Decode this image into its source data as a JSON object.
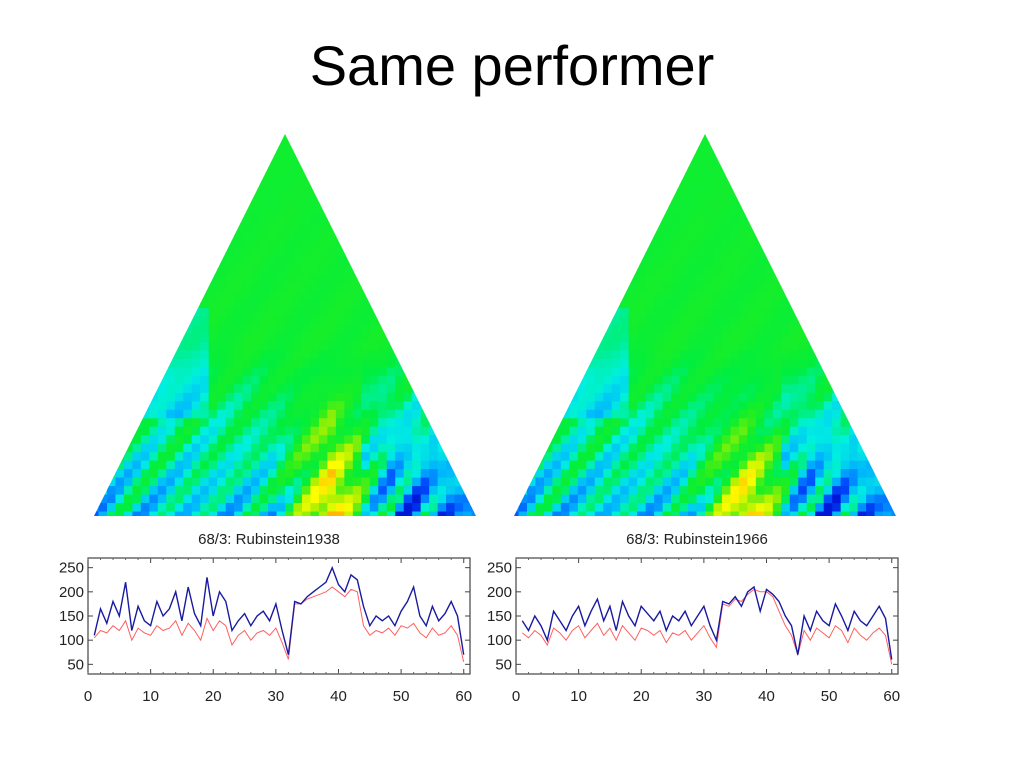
{
  "slide": {
    "title": "Same performer"
  },
  "colors": {
    "heatmap_ramp": [
      "#0018d8",
      "#0050ff",
      "#00b0ff",
      "#00f0e0",
      "#00ee40",
      "#20ee20",
      "#b0f000",
      "#ffff00",
      "#ffa000",
      "#ff5000"
    ],
    "blue_series": "#1a1aa0",
    "red_series": "#ff6060"
  },
  "chart_data": [
    {
      "type": "heatmap",
      "shape": "triangle",
      "description": "scape plot (upside triangle)",
      "title": ""
    },
    {
      "type": "heatmap",
      "shape": "triangle",
      "description": "scape plot (upside triangle)",
      "title": ""
    },
    {
      "type": "line",
      "title": "68/3: Rubinstein1938",
      "xlim": [
        0,
        61
      ],
      "ylim": [
        30,
        270
      ],
      "xticks": [
        0,
        10,
        20,
        30,
        40,
        50,
        60
      ],
      "yticks": [
        50,
        100,
        150,
        200,
        250
      ],
      "grid": false,
      "x": [
        1,
        2,
        3,
        4,
        5,
        6,
        7,
        8,
        9,
        10,
        11,
        12,
        13,
        14,
        15,
        16,
        17,
        18,
        19,
        20,
        21,
        22,
        23,
        24,
        25,
        26,
        27,
        28,
        29,
        30,
        31,
        32,
        33,
        34,
        35,
        36,
        37,
        38,
        39,
        40,
        41,
        42,
        43,
        44,
        45,
        46,
        47,
        48,
        49,
        50,
        51,
        52,
        53,
        54,
        55,
        56,
        57,
        58,
        59,
        60
      ],
      "series": [
        {
          "color": "#1a1aa0",
          "values": [
            110,
            165,
            135,
            180,
            150,
            220,
            120,
            170,
            140,
            130,
            180,
            150,
            165,
            200,
            140,
            210,
            155,
            130,
            230,
            150,
            200,
            180,
            120,
            140,
            155,
            130,
            150,
            160,
            140,
            175,
            120,
            70,
            180,
            175,
            190,
            200,
            210,
            220,
            250,
            215,
            200,
            235,
            225,
            170,
            130,
            150,
            140,
            150,
            130,
            160,
            180,
            210,
            150,
            130,
            170,
            140,
            155,
            180,
            150,
            70
          ]
        },
        {
          "color": "#ff6060",
          "values": [
            105,
            120,
            115,
            130,
            120,
            140,
            100,
            125,
            115,
            110,
            130,
            120,
            125,
            140,
            110,
            135,
            120,
            100,
            145,
            120,
            140,
            130,
            90,
            110,
            120,
            100,
            115,
            120,
            110,
            125,
            95,
            60,
            175,
            175,
            185,
            190,
            195,
            200,
            210,
            200,
            190,
            205,
            200,
            130,
            110,
            120,
            115,
            125,
            110,
            130,
            125,
            135,
            115,
            105,
            125,
            110,
            115,
            130,
            110,
            55
          ]
        }
      ]
    },
    {
      "type": "line",
      "title": "68/3: Rubinstein1966",
      "xlim": [
        0,
        61
      ],
      "ylim": [
        30,
        270
      ],
      "xticks": [
        0,
        10,
        20,
        30,
        40,
        50,
        60
      ],
      "yticks": [
        50,
        100,
        150,
        200,
        250
      ],
      "grid": false,
      "x": [
        1,
        2,
        3,
        4,
        5,
        6,
        7,
        8,
        9,
        10,
        11,
        12,
        13,
        14,
        15,
        16,
        17,
        18,
        19,
        20,
        21,
        22,
        23,
        24,
        25,
        26,
        27,
        28,
        29,
        30,
        31,
        32,
        33,
        34,
        35,
        36,
        37,
        38,
        39,
        40,
        41,
        42,
        43,
        44,
        45,
        46,
        47,
        48,
        49,
        50,
        51,
        52,
        53,
        54,
        55,
        56,
        57,
        58,
        59,
        60
      ],
      "series": [
        {
          "color": "#1a1aa0",
          "values": [
            140,
            120,
            150,
            130,
            100,
            160,
            140,
            120,
            150,
            170,
            130,
            160,
            185,
            140,
            170,
            120,
            180,
            150,
            130,
            170,
            155,
            140,
            160,
            120,
            150,
            140,
            160,
            130,
            150,
            170,
            130,
            100,
            180,
            175,
            190,
            170,
            200,
            210,
            160,
            205,
            195,
            180,
            150,
            130,
            70,
            150,
            120,
            160,
            140,
            130,
            175,
            150,
            120,
            160,
            140,
            130,
            150,
            170,
            145,
            60
          ]
        },
        {
          "color": "#ff6060",
          "values": [
            115,
            105,
            120,
            110,
            90,
            125,
            115,
            100,
            120,
            130,
            105,
            120,
            135,
            110,
            125,
            100,
            130,
            115,
            100,
            125,
            120,
            110,
            120,
            95,
            115,
            110,
            120,
            100,
            115,
            130,
            105,
            85,
            175,
            170,
            185,
            180,
            195,
            205,
            200,
            200,
            190,
            160,
            130,
            110,
            70,
            120,
            100,
            125,
            115,
            105,
            130,
            120,
            95,
            125,
            110,
            100,
            115,
            125,
            110,
            50
          ]
        }
      ]
    }
  ]
}
